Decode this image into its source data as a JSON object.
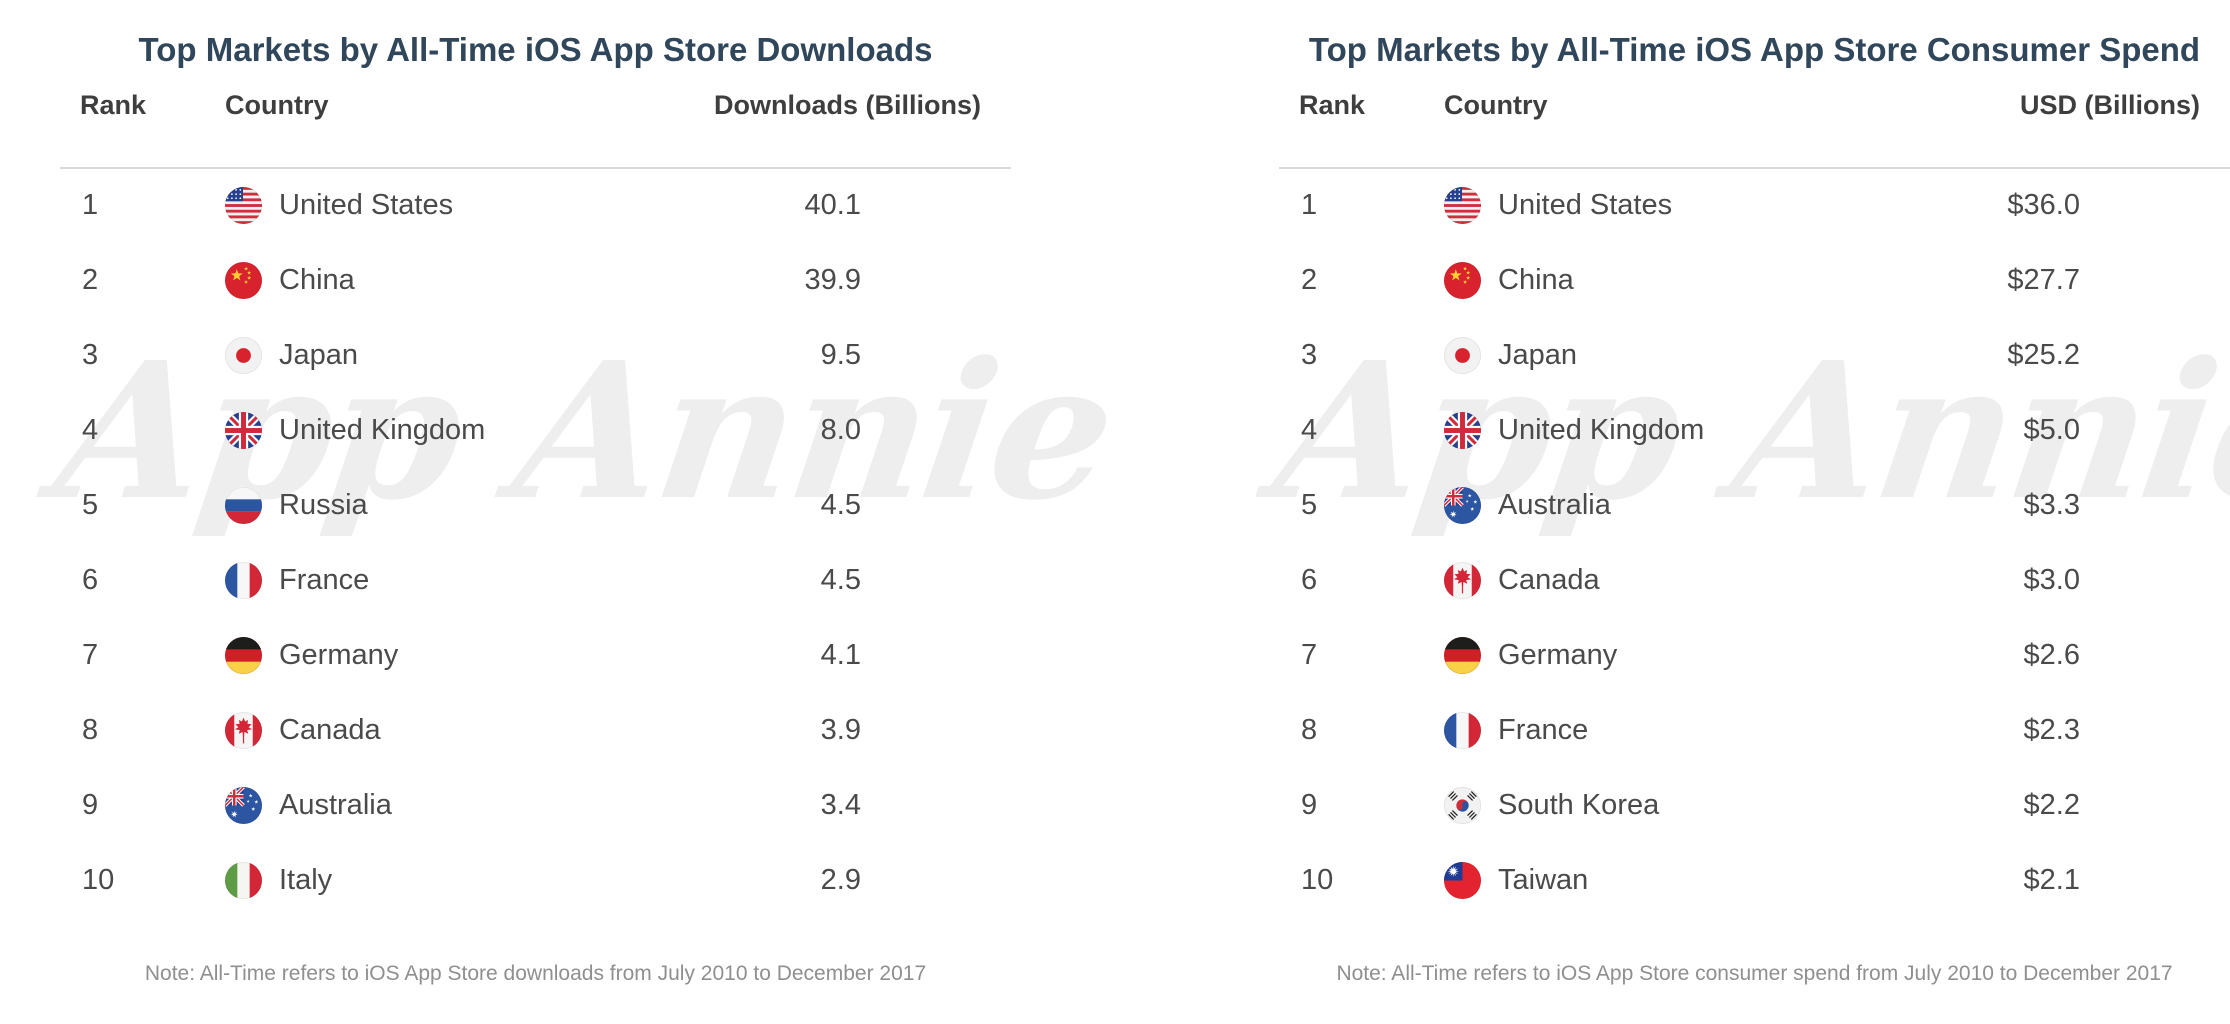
{
  "watermark": {
    "text": "App Annie",
    "color": "#eeeeee"
  },
  "colors": {
    "title": "#30465a",
    "header_text": "#3e3e3e",
    "body_text": "#4a4a4a",
    "note_text": "#8f8f8f",
    "divider": "#d9d9d9",
    "background": "#ffffff"
  },
  "downloads_table": {
    "title": "Top Markets by All-Time iOS App Store Downloads",
    "columns": {
      "rank": "Rank",
      "country": "Country",
      "value": "Downloads (Billions)"
    },
    "rows": [
      {
        "rank": "1",
        "country": "United States",
        "flag": "us",
        "value": "40.1"
      },
      {
        "rank": "2",
        "country": "China",
        "flag": "cn",
        "value": "39.9"
      },
      {
        "rank": "3",
        "country": "Japan",
        "flag": "jp",
        "value": "9.5"
      },
      {
        "rank": "4",
        "country": "United Kingdom",
        "flag": "gb",
        "value": "8.0"
      },
      {
        "rank": "5",
        "country": "Russia",
        "flag": "ru",
        "value": "4.5"
      },
      {
        "rank": "6",
        "country": "France",
        "flag": "fr",
        "value": "4.5"
      },
      {
        "rank": "7",
        "country": "Germany",
        "flag": "de",
        "value": "4.1"
      },
      {
        "rank": "8",
        "country": "Canada",
        "flag": "ca",
        "value": "3.9"
      },
      {
        "rank": "9",
        "country": "Australia",
        "flag": "au",
        "value": "3.4"
      },
      {
        "rank": "10",
        "country": "Italy",
        "flag": "it",
        "value": "2.9"
      }
    ],
    "note": "Note: All-Time refers to iOS App Store downloads from July 2010 to December 2017"
  },
  "spend_table": {
    "title": "Top Markets by All-Time iOS App Store Consumer Spend",
    "columns": {
      "rank": "Rank",
      "country": "Country",
      "value": "USD (Billions)"
    },
    "rows": [
      {
        "rank": "1",
        "country": "United States",
        "flag": "us",
        "value": "$36.0"
      },
      {
        "rank": "2",
        "country": "China",
        "flag": "cn",
        "value": "$27.7"
      },
      {
        "rank": "3",
        "country": "Japan",
        "flag": "jp",
        "value": "$25.2"
      },
      {
        "rank": "4",
        "country": "United Kingdom",
        "flag": "gb",
        "value": "$5.0"
      },
      {
        "rank": "5",
        "country": "Australia",
        "flag": "au",
        "value": "$3.3"
      },
      {
        "rank": "6",
        "country": "Canada",
        "flag": "ca",
        "value": "$3.0"
      },
      {
        "rank": "7",
        "country": "Germany",
        "flag": "de",
        "value": "$2.6"
      },
      {
        "rank": "8",
        "country": "France",
        "flag": "fr",
        "value": "$2.3"
      },
      {
        "rank": "9",
        "country": "South Korea",
        "flag": "kr",
        "value": "$2.2"
      },
      {
        "rank": "10",
        "country": "Taiwan",
        "flag": "tw",
        "value": "$2.1"
      }
    ],
    "note": "Note: All-Time refers to iOS App Store consumer spend from July 2010 to December 2017"
  },
  "chart_data": [
    {
      "type": "table",
      "title": "Top Markets by All-Time iOS App Store Downloads",
      "columns": [
        "Rank",
        "Country",
        "Downloads (Billions)"
      ],
      "categories": [
        "United States",
        "China",
        "Japan",
        "United Kingdom",
        "Russia",
        "France",
        "Germany",
        "Canada",
        "Australia",
        "Italy"
      ],
      "values": [
        40.1,
        39.9,
        9.5,
        8.0,
        4.5,
        4.5,
        4.1,
        3.9,
        3.4,
        2.9
      ],
      "note": "Note: All-Time refers to iOS App Store downloads from July 2010 to December 2017"
    },
    {
      "type": "table",
      "title": "Top Markets by All-Time iOS App Store Consumer Spend",
      "columns": [
        "Rank",
        "Country",
        "USD (Billions)"
      ],
      "categories": [
        "United States",
        "China",
        "Japan",
        "United Kingdom",
        "Australia",
        "Canada",
        "Germany",
        "France",
        "South Korea",
        "Taiwan"
      ],
      "values": [
        36.0,
        27.7,
        25.2,
        5.0,
        3.3,
        3.0,
        2.6,
        2.3,
        2.2,
        2.1
      ],
      "note": "Note: All-Time refers to iOS App Store consumer spend from July 2010 to December 2017"
    }
  ]
}
